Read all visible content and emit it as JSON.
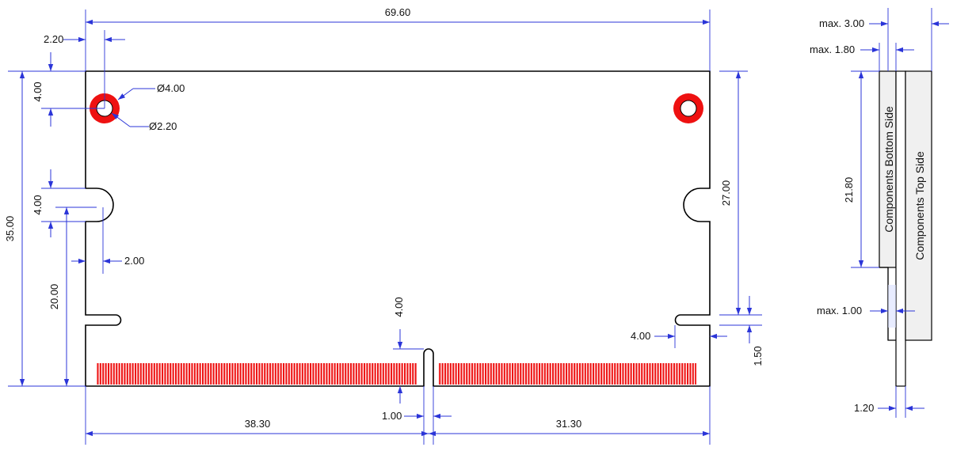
{
  "colors": {
    "dimension": "#2b35d8",
    "copper": "#ee1111",
    "outline": "#000000",
    "side_panel": "#f0f0f0"
  },
  "dimensions": {
    "total_width": "69.60",
    "hole_edge_offset_x": "2.20",
    "hole_edge_offset_y": "4.00",
    "hole_pad_diameter": "Ø4.00",
    "hole_drill_diameter": "Ø2.20",
    "height": "35.00",
    "notch_width": "4.00",
    "notch_depth": "2.00",
    "notch_height_from_bottom": "20.00",
    "right_notch_y": "27.00",
    "key_slot_depth": "4.00",
    "key_slot_width": "1.00",
    "left_contacts_width": "38.30",
    "right_contacts_width": "31.30",
    "bottom_notch_width": "4.00",
    "bottom_notch_height": "1.50"
  },
  "side_view": {
    "max_total_thickness": "max. 3.00",
    "max_bottom_components": "max. 1.80",
    "component_zone_height": "21.80",
    "bottom_side_label": "Components Bottom Side",
    "top_side_label": "Components Top Side",
    "max_step": "max. 1.00",
    "pcb_thickness": "1.20"
  }
}
